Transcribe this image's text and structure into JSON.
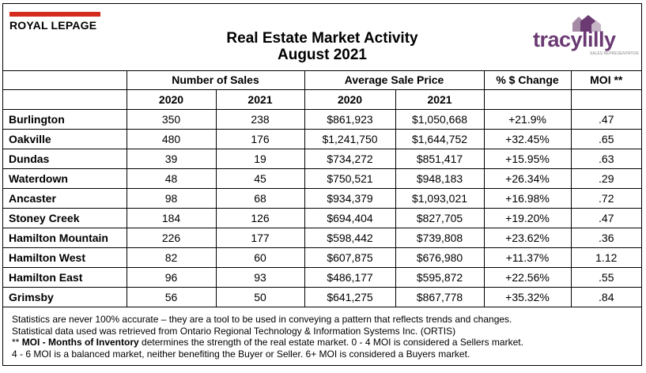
{
  "header": {
    "title_line1": "Real Estate Market Activity",
    "title_line2": "August 2021",
    "left_logo_text": "ROYAL LEPAGE",
    "right_logo_text": "tracylilly",
    "right_logo_tagline": "SALES REPRESENTATIVE"
  },
  "columns": {
    "sales": "Number of Sales",
    "price": "Average Sale Price",
    "change": "% $ Change",
    "moi": "MOI **",
    "y2020": "2020",
    "y2021": "2021"
  },
  "rows": [
    {
      "city": "Burlington",
      "sales_2020": "350",
      "sales_2021": "238",
      "price_2020": "$861,923",
      "price_2021": "$1,050,668",
      "change": "+21.9%",
      "moi": ".47"
    },
    {
      "city": "Oakville",
      "sales_2020": "480",
      "sales_2021": "176",
      "price_2020": "$1,241,750",
      "price_2021": "$1,644,752",
      "change": "+32.45%",
      "moi": ".65"
    },
    {
      "city": "Dundas",
      "sales_2020": "39",
      "sales_2021": "19",
      "price_2020": "$734,272",
      "price_2021": "$851,417",
      "change": "+15.95%",
      "moi": ".63"
    },
    {
      "city": "Waterdown",
      "sales_2020": "48",
      "sales_2021": "45",
      "price_2020": "$750,521",
      "price_2021": "$948,183",
      "change": "+26.34%",
      "moi": ".29"
    },
    {
      "city": "Ancaster",
      "sales_2020": "98",
      "sales_2021": "68",
      "price_2020": "$934,379",
      "price_2021": "$1,093,021",
      "change": "+16.98%",
      "moi": ".72"
    },
    {
      "city": "Stoney Creek",
      "sales_2020": "184",
      "sales_2021": "126",
      "price_2020": "$694,404",
      "price_2021": "$827,705",
      "change": "+19.20%",
      "moi": ".47"
    },
    {
      "city": "Hamilton Mountain",
      "sales_2020": "226",
      "sales_2021": "177",
      "price_2020": "$598,442",
      "price_2021": "$739,808",
      "change": "+23.62%",
      "moi": ".36"
    },
    {
      "city": "Hamilton West",
      "sales_2020": "82",
      "sales_2021": "60",
      "price_2020": "$607,875",
      "price_2021": "$676,980",
      "change": "+11.37%",
      "moi": "1.12"
    },
    {
      "city": "Hamilton East",
      "sales_2020": "96",
      "sales_2021": "93",
      "price_2020": "$486,177",
      "price_2021": "$595,872",
      "change": "+22.56%",
      "moi": ".55"
    },
    {
      "city": "Grimsby",
      "sales_2020": "56",
      "sales_2021": "50",
      "price_2020": "$641,275",
      "price_2021": "$867,778",
      "change": "+35.32%",
      "moi": ".84"
    }
  ],
  "notes": {
    "line1": "Statistics are never 100% accurate – they are a tool to be used in conveying a pattern that reflects trends and changes.",
    "line2": "Statistical data used was retrieved from Ontario Regional Technology & Information Systems Inc. (ORTIS)",
    "line3_prefix": "** ",
    "line3_bold": "MOI - Months of Inventory",
    "line3_rest": " determines the strength of the real estate market. 0 - 4 MOI is considered a Sellers market.",
    "line4": "4 - 6 MOI is a balanced market, neither benefiting the Buyer or Seller. 6+ MOI is considered a Buyers market."
  },
  "colors": {
    "royal_lepage_red": "#d52b1e",
    "tracylilly_purple": "#6b3a73"
  }
}
